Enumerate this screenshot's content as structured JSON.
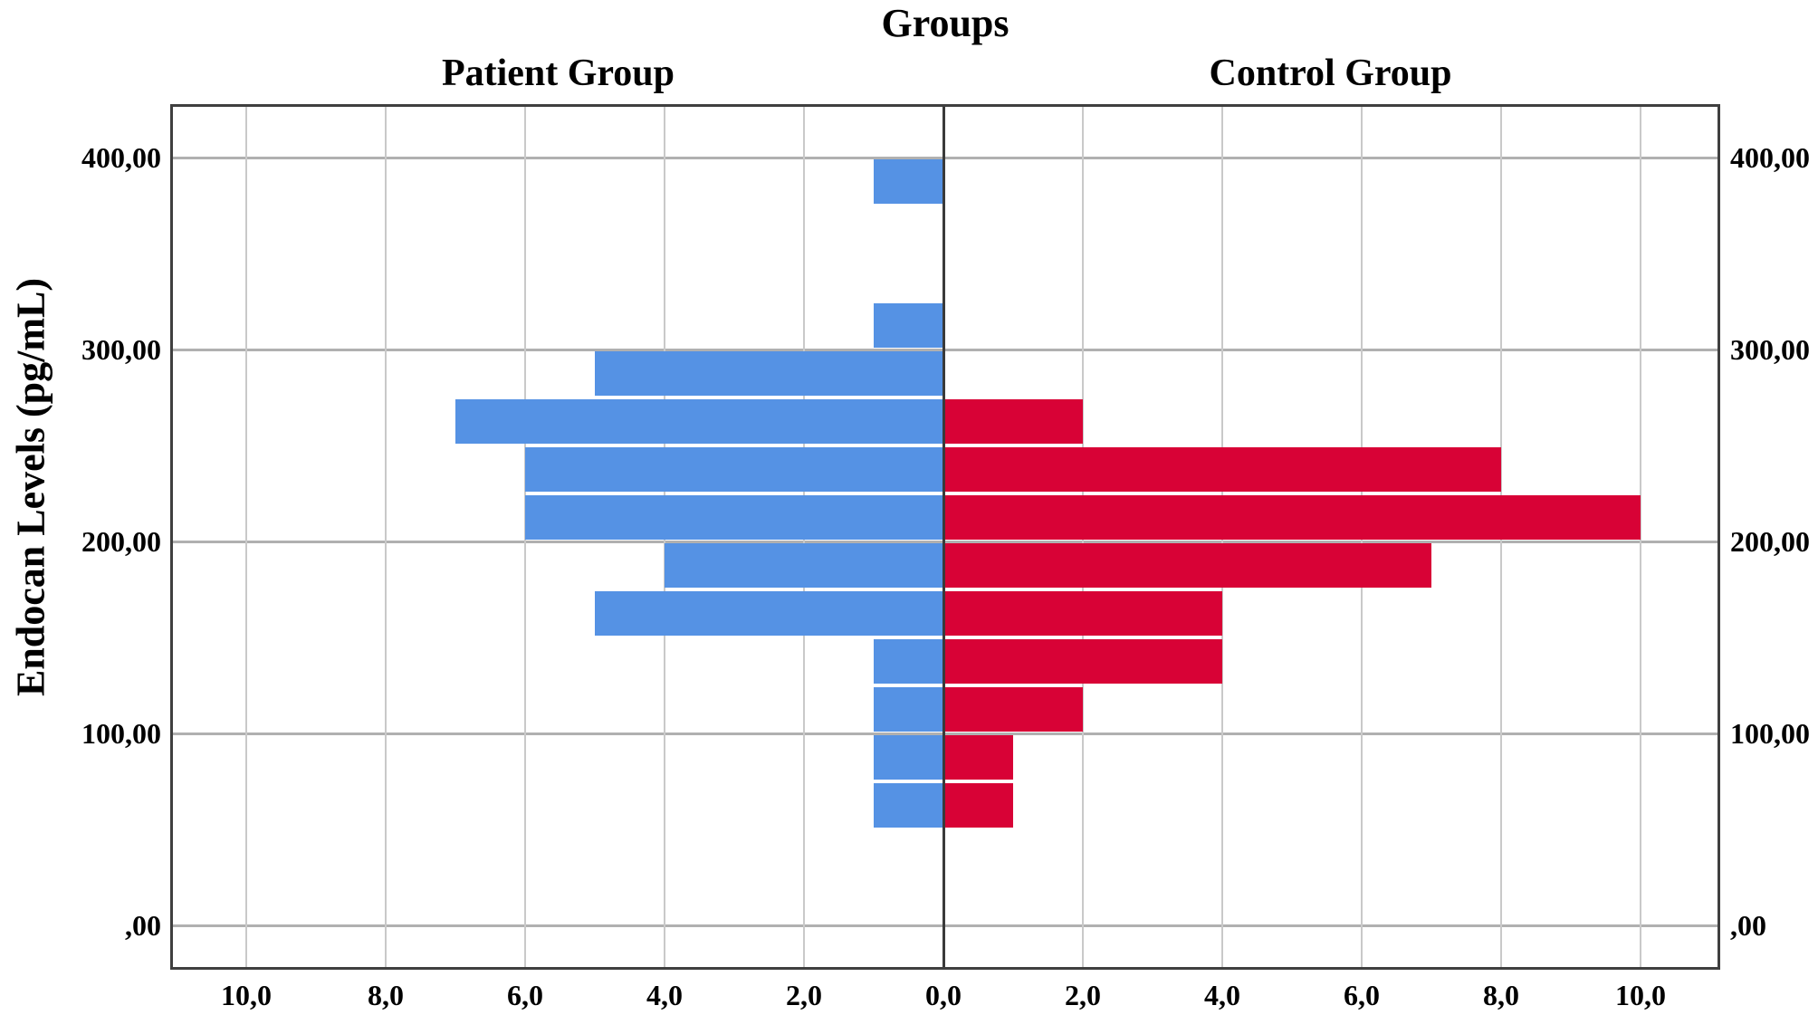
{
  "chart_data": {
    "type": "bar",
    "subtype": "back-to-back-histogram",
    "title": "Groups",
    "panels": [
      {
        "side": "left",
        "label": "Patient Group",
        "color": "#5592e4"
      },
      {
        "side": "right",
        "label": "Control Group",
        "color": "#d80236"
      }
    ],
    "ylabel": "Endocan Levels (pg/mL)",
    "xlabel": "",
    "bin_width": 25,
    "bin_lows": [
      50,
      75,
      100,
      125,
      150,
      175,
      200,
      225,
      250,
      275,
      300,
      325,
      350,
      375
    ],
    "series": [
      {
        "name": "Patient Group",
        "values": [
          1,
          1,
          1,
          1,
          5,
          4,
          6,
          6,
          7,
          5,
          1,
          0,
          0,
          1
        ]
      },
      {
        "name": "Control Group",
        "values": [
          1,
          1,
          2,
          4,
          4,
          7,
          10,
          8,
          2,
          0,
          0,
          0,
          0,
          0
        ]
      }
    ],
    "bins": [
      {
        "range": "50-75",
        "patient": 1,
        "control": 1
      },
      {
        "range": "75-100",
        "patient": 1,
        "control": 1
      },
      {
        "range": "100-125",
        "patient": 1,
        "control": 2
      },
      {
        "range": "125-150",
        "patient": 1,
        "control": 4
      },
      {
        "range": "150-175",
        "patient": 5,
        "control": 4
      },
      {
        "range": "175-200",
        "patient": 4,
        "control": 7
      },
      {
        "range": "200-225",
        "patient": 6,
        "control": 10
      },
      {
        "range": "225-250",
        "patient": 6,
        "control": 8
      },
      {
        "range": "250-275",
        "patient": 7,
        "control": 2
      },
      {
        "range": "275-300",
        "patient": 5,
        "control": 0
      },
      {
        "range": "300-325",
        "patient": 1,
        "control": 0
      },
      {
        "range": "325-350",
        "patient": 0,
        "control": 0
      },
      {
        "range": "350-375",
        "patient": 0,
        "control": 0
      },
      {
        "range": "375-400",
        "patient": 1,
        "control": 0
      }
    ],
    "y_ticks": [
      {
        "value": 400,
        "label": "400,00"
      },
      {
        "value": 300,
        "label": "300,00"
      },
      {
        "value": 200,
        "label": "200,00"
      },
      {
        "value": 100,
        "label": "100,00"
      },
      {
        "value": 0,
        "label": ",00"
      }
    ],
    "x_ticks": [
      {
        "value": 0,
        "label": "0,0"
      },
      {
        "value": 2,
        "label": "2,0"
      },
      {
        "value": 4,
        "label": "4,0"
      },
      {
        "value": 6,
        "label": "6,0"
      },
      {
        "value": 8,
        "label": "8,0"
      },
      {
        "value": 10,
        "label": "10,0"
      }
    ],
    "x_max_per_side": 11,
    "ylim": [
      -22,
      426
    ],
    "grid": true,
    "legend": "none",
    "colors": {
      "patient_bar": "#5592e4",
      "control_bar": "#d80236",
      "grid_major": "#b0b0b0",
      "grid_minor": "#c9c9c9",
      "axis_border": "#3f3f3f",
      "divider": "#3a3a3a"
    }
  }
}
